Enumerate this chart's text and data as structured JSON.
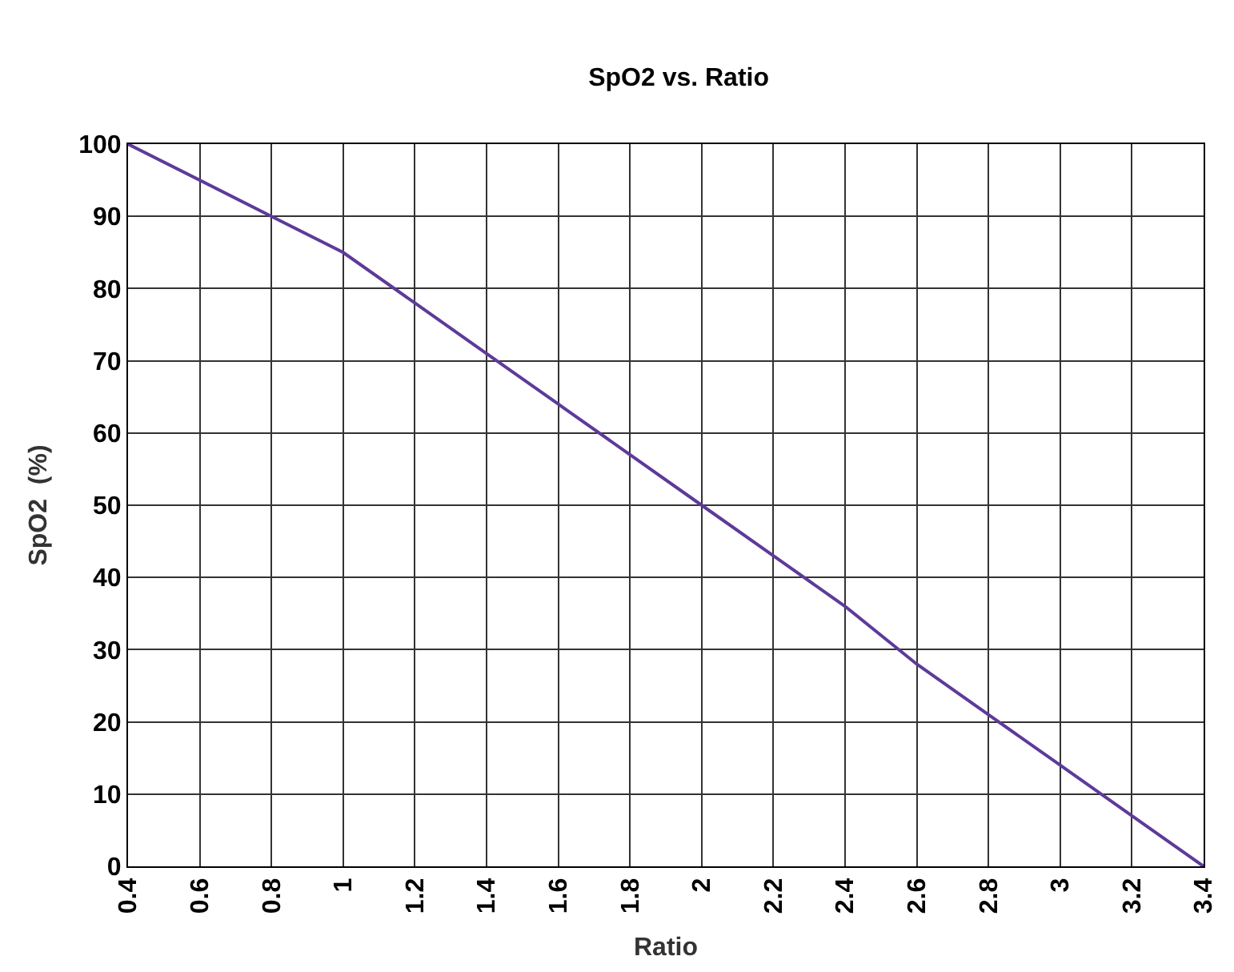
{
  "chart_data": {
    "type": "line",
    "title": "SpO2 vs. Ratio",
    "xlabel": "Ratio",
    "ylabel": "SpO2  (%)",
    "x": [
      0.4,
      0.8,
      1,
      1.2,
      1.4,
      1.6,
      1.8,
      2,
      2.2,
      2.4,
      2.6,
      2.8,
      3,
      3.2,
      3.4
    ],
    "series": [
      {
        "color": "#5e3a9a",
        "values": [
          100,
          90,
          85,
          78,
          71,
          64,
          57,
          50,
          43,
          36,
          28,
          21,
          14,
          7,
          0
        ]
      }
    ],
    "xlim": [
      0.4,
      3.4
    ],
    "xticks": [
      0.4,
      0.6,
      0.8,
      1,
      1.2,
      1.4,
      1.6,
      1.8,
      2,
      2.2,
      2.4,
      2.6,
      2.8,
      3,
      3.2,
      3.4
    ],
    "ylim": [
      0,
      100
    ],
    "yticks": [
      0,
      10,
      20,
      30,
      40,
      50,
      60,
      70,
      80,
      90,
      100
    ],
    "grid": true,
    "marker": "none",
    "line_style": "solid"
  }
}
